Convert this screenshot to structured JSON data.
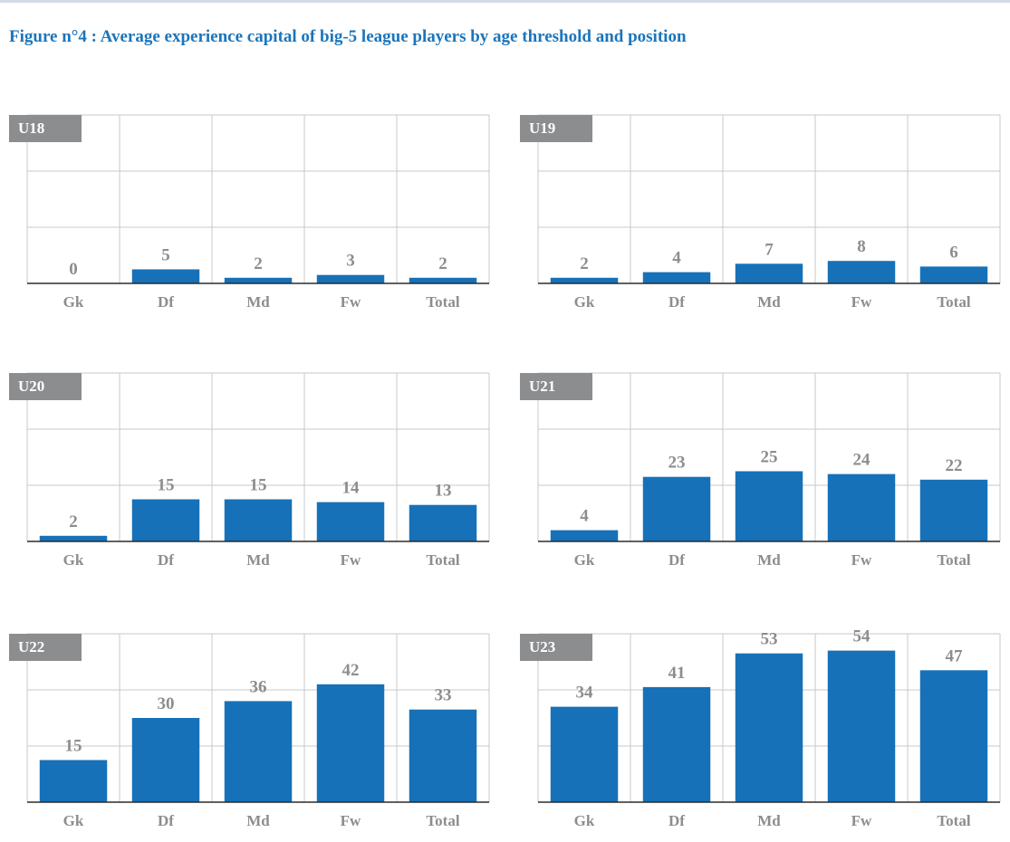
{
  "title": "Figure n°4 : Average experience capital of big-5 league players by age threshold and position",
  "colors": {
    "bar": "#1671b8",
    "label_box": "#8c8d8e",
    "title": "#1b75bb"
  },
  "chart_data": [
    {
      "type": "bar",
      "label": "U18",
      "categories": [
        "Gk",
        "Df",
        "Md",
        "Fw",
        "Total"
      ],
      "values": [
        0,
        5,
        2,
        3,
        2
      ],
      "ylim": [
        0,
        60
      ],
      "grid": true
    },
    {
      "type": "bar",
      "label": "U19",
      "categories": [
        "Gk",
        "Df",
        "Md",
        "Fw",
        "Total"
      ],
      "values": [
        2,
        4,
        7,
        8,
        6
      ],
      "ylim": [
        0,
        60
      ],
      "grid": true
    },
    {
      "type": "bar",
      "label": "U20",
      "categories": [
        "Gk",
        "Df",
        "Md",
        "Fw",
        "Total"
      ],
      "values": [
        2,
        15,
        15,
        14,
        13
      ],
      "ylim": [
        0,
        60
      ],
      "grid": true
    },
    {
      "type": "bar",
      "label": "U21",
      "categories": [
        "Gk",
        "Df",
        "Md",
        "Fw",
        "Total"
      ],
      "values": [
        4,
        23,
        25,
        24,
        22
      ],
      "ylim": [
        0,
        60
      ],
      "grid": true
    },
    {
      "type": "bar",
      "label": "U22",
      "categories": [
        "Gk",
        "Df",
        "Md",
        "Fw",
        "Total"
      ],
      "values": [
        15,
        30,
        36,
        42,
        33
      ],
      "ylim": [
        0,
        60
      ],
      "grid": true
    },
    {
      "type": "bar",
      "label": "U23",
      "categories": [
        "Gk",
        "Df",
        "Md",
        "Fw",
        "Total"
      ],
      "values": [
        34,
        41,
        53,
        54,
        47
      ],
      "ylim": [
        0,
        60
      ],
      "grid": true
    }
  ]
}
